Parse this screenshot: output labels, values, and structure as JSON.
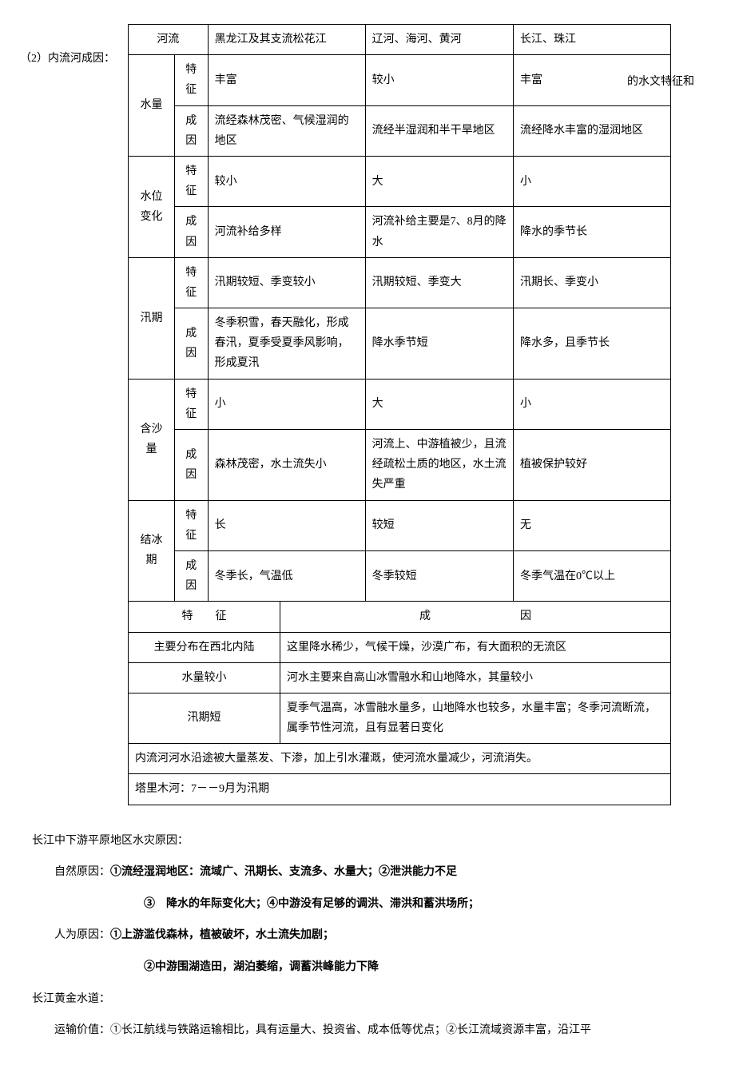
{
  "side_left": "（2）内流河成因：",
  "side_right": "的水文特征和",
  "table1": {
    "r1": {
      "a": "河流",
      "c": "黑龙江及其支流松花江",
      "d": "辽河、海河、黄河",
      "e": "长江、珠江"
    },
    "r2": {
      "a": "水量",
      "b1": "特征",
      "c1": "丰富",
      "d1": "较小",
      "e1": "丰富",
      "b2": "成因",
      "c2": "流经森林茂密、气候湿润的地区",
      "d2": "流经半湿润和半干旱地区",
      "e2": "流经降水丰富的湿润地区"
    },
    "r3": {
      "a": "水位变化",
      "b1": "特征",
      "c1": "较小",
      "d1": "大",
      "e1": "小",
      "b2": "成因",
      "c2": "河流补给多样",
      "d2": "河流补给主要是7、8月的降水",
      "e2": "降水的季节长"
    },
    "r4": {
      "a": "汛期",
      "b1": "特征",
      "c1": "汛期较短、季变较小",
      "d1": "汛期较短、季变大",
      "e1": "汛期长、季变小",
      "b2": "成因",
      "c2": "冬季积雪，春天融化，形成春汛，夏季受夏季风影响，形成夏汛",
      "d2": "降水季节短",
      "e2": "降水多，且季节长"
    },
    "r5": {
      "a": "含沙量",
      "b1": "特征",
      "c1": "小",
      "d1": "大",
      "e1": "小",
      "b2": "成因",
      "c2": "森林茂密，水土流失小",
      "d2": "河流上、中游植被少，且流经疏松土质的地区，水土流失严重",
      "e2": "植被保护较好"
    },
    "r6": {
      "a": "结冰期",
      "b1": "特征",
      "c1": "长",
      "d1": "较短",
      "e1": "无",
      "b2": "成因",
      "c2": "冬季长，气温低",
      "d2": "冬季较短",
      "e2": "冬季气温在0℃以上"
    }
  },
  "table2": {
    "hdr_l": "特　　征",
    "hdr_r": "成　　　　　　　　因",
    "r1_l": "主要分布在西北内陆",
    "r1_r": "这里降水稀少，气候干燥，沙漠广布，有大面积的无流区",
    "r2_l": "水量较小",
    "r2_r": "河水主要来自高山冰雪融水和山地降水，其量较小",
    "r3_l": "汛期短",
    "r3_r": "夏季气温高，冰雪融水量多，山地降水也较多，水量丰富；冬季河流断流，属季节性河流，且有显著日变化",
    "r4": "内流河河水沿途被大量蒸发、下渗，加上引水灌溉，使河流水量减少，河流消失。",
    "r5": "塔里木河：7－－9月为汛期"
  },
  "prose": {
    "p1": "长江中下游平原地区水灾原因：",
    "p2a": "自然原因：",
    "p2b": "①流经湿润地区：流域广、汛期长、支流多、水量大；②泄洪能力不足",
    "p3": "③　降水的年际变化大；④中游没有足够的调洪、滞洪和蓄洪场所；",
    "p4a": "人为原因：",
    "p4b": "①上游滥伐森林，植被破坏，水土流失加剧；",
    "p5": "②中游围湖造田，湖泊萎缩，调蓄洪峰能力下降",
    "p6": "长江黄金水道：",
    "p7": "运输价值：①长江航线与铁路运输相比，具有运量大、投资省、成本低等优点；②长江流域资源丰富，沿江平"
  }
}
